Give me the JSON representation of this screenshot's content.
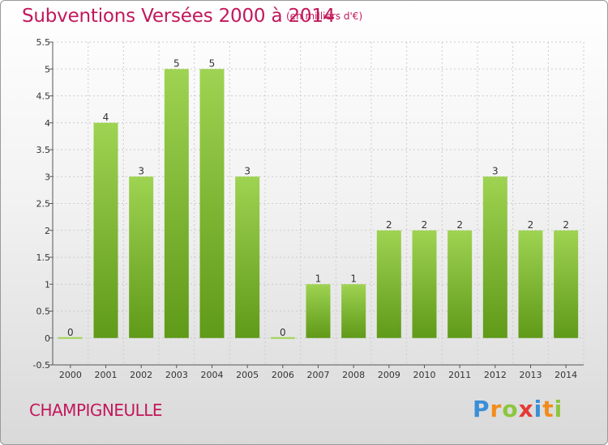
{
  "title": "Subventions Versées 2000 à 2014",
  "unit_note": "(en milliers d'€)",
  "location": "CHAMPIGNEULLE",
  "logo": {
    "text": "Proxiti",
    "letters": [
      {
        "ch": "P",
        "color": "#3a8fd6"
      },
      {
        "ch": "r",
        "color": "#f28c1b"
      },
      {
        "ch": "o",
        "color": "#8cc63f"
      },
      {
        "ch": "x",
        "color": "#e53935"
      },
      {
        "ch": "i",
        "color": "#3a8fd6"
      },
      {
        "ch": "t",
        "color": "#f28c1b"
      },
      {
        "ch": "i",
        "color": "#8cc63f"
      }
    ]
  },
  "colors": {
    "accent": "#c2185b",
    "bar_top": "#9fd352",
    "bar_bottom": "#5f9a18",
    "axis": "#555555",
    "grid": "#cccccc"
  },
  "chart_data": {
    "type": "bar",
    "title": "Subventions Versées 2000 à 2014",
    "xlabel": "",
    "ylabel": "",
    "categories": [
      "2000",
      "2001",
      "2002",
      "2003",
      "2004",
      "2005",
      "2006",
      "2007",
      "2008",
      "2009",
      "2010",
      "2011",
      "2012",
      "2013",
      "2014"
    ],
    "values": [
      0,
      4,
      3,
      5,
      5,
      3,
      0,
      1,
      1,
      2,
      2,
      2,
      3,
      2,
      2
    ],
    "data_labels": [
      "0",
      "4",
      "3",
      "5",
      "5",
      "3",
      "0",
      "1",
      "1",
      "2",
      "2",
      "2",
      "3",
      "2",
      "2"
    ],
    "ylim": [
      -0.5,
      5.5
    ],
    "yticks": [
      -0.5,
      0,
      0.5,
      1,
      1.5,
      2,
      2.5,
      3,
      3.5,
      4,
      4.5,
      5,
      5.5
    ],
    "ytick_labels": [
      "-0.5",
      "0",
      "0.5",
      "1",
      "1.5",
      "2",
      "2.5",
      "3",
      "3.5",
      "4",
      "4.5",
      "5",
      "5.5"
    ],
    "grid": true
  }
}
